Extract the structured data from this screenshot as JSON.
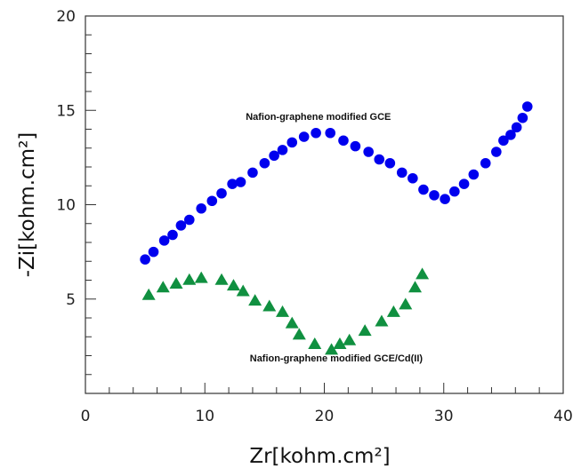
{
  "chart_data": {
    "type": "scatter",
    "xlabel": "Zr[kohm.cm²]",
    "ylabel": "-Zi[kohm.cm²]",
    "xlim": [
      0,
      40
    ],
    "ylim": [
      0,
      20
    ],
    "xticks": [
      0,
      10,
      20,
      30,
      40
    ],
    "yticks": [
      5,
      10,
      15,
      20
    ],
    "grid": false,
    "series": [
      {
        "name": "Nafion-graphene modified GCE",
        "marker": "circle",
        "color": "#0000ee",
        "x": [
          5.0,
          5.7,
          6.6,
          7.3,
          8.0,
          8.7,
          9.7,
          10.6,
          11.4,
          12.3,
          13.0,
          14.0,
          15.0,
          15.8,
          16.5,
          17.3,
          18.3,
          19.3,
          20.5,
          21.6,
          22.6,
          23.7,
          24.6,
          25.5,
          26.5,
          27.4,
          28.3,
          29.2,
          30.1,
          30.9,
          31.7,
          32.5,
          33.5,
          34.4,
          35.0,
          35.6,
          36.1,
          36.6,
          37.0
        ],
        "y": [
          7.1,
          7.5,
          8.1,
          8.4,
          8.9,
          9.2,
          9.8,
          10.2,
          10.6,
          11.1,
          11.2,
          11.7,
          12.2,
          12.6,
          12.9,
          13.3,
          13.6,
          13.8,
          13.8,
          13.4,
          13.1,
          12.8,
          12.4,
          12.2,
          11.7,
          11.4,
          10.8,
          10.5,
          10.3,
          10.7,
          11.1,
          11.6,
          12.2,
          12.8,
          13.4,
          13.7,
          14.1,
          14.6,
          15.2
        ]
      },
      {
        "name": "Nafion-graphene modified GCE/Cd(II)",
        "marker": "triangle",
        "color": "#109040",
        "x": [
          5.3,
          6.5,
          7.6,
          8.7,
          9.7,
          11.4,
          12.4,
          13.2,
          14.2,
          15.4,
          16.5,
          17.3,
          17.9,
          19.2,
          20.6,
          21.3,
          22.1,
          23.4,
          24.8,
          25.8,
          26.8,
          27.6,
          28.2
        ],
        "y": [
          5.2,
          5.6,
          5.8,
          6.0,
          6.1,
          6.0,
          5.7,
          5.4,
          4.9,
          4.6,
          4.3,
          3.7,
          3.1,
          2.6,
          2.3,
          2.6,
          2.8,
          3.3,
          3.8,
          4.3,
          4.7,
          5.6,
          6.3
        ]
      }
    ],
    "annotations": [
      {
        "text": "Nafion-graphene modified GCE",
        "x": 19.5,
        "y": 14.5
      },
      {
        "text": "Nafion-graphene modified GCE/Cd(II)",
        "x": 21.0,
        "y": 1.7
      }
    ]
  }
}
